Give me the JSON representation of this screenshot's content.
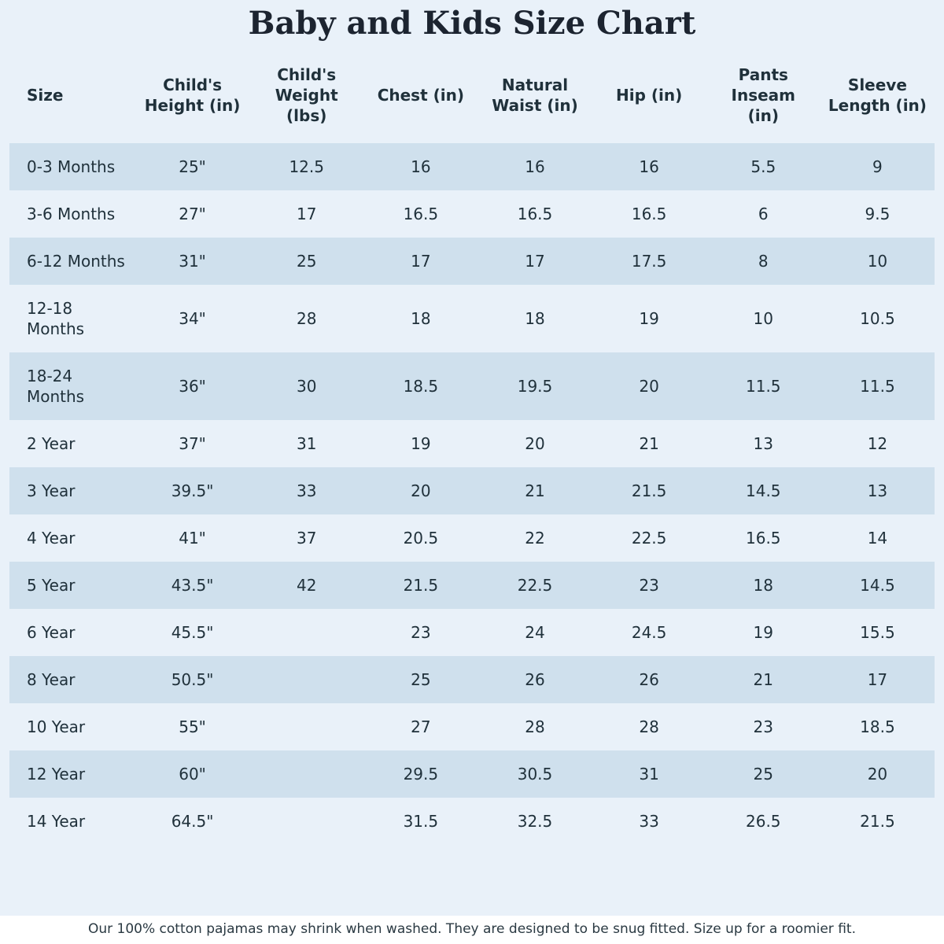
{
  "page": {
    "title": "Baby and Kids Size Chart",
    "footer_note": "Our 100% cotton pajamas may shrink when washed. They are designed to be snug fitted. Size up for a roomier fit."
  },
  "colors": {
    "page_background": "#e9f1f9",
    "row_stripe": "#cfe0ed",
    "text_color": "#20313b",
    "footer_background": "#ffffff"
  },
  "chart_data": {
    "type": "table",
    "title": "Baby and Kids Size Chart",
    "columns": [
      "Size",
      "Child's Height (in)",
      "Child's Weight (lbs)",
      "Chest (in)",
      "Natural Waist (in)",
      "Hip (in)",
      "Pants Inseam (in)",
      "Sleeve Length (in)"
    ],
    "rows": [
      [
        "0-3 Months",
        "25\"",
        "12.5",
        "16",
        "16",
        "16",
        "5.5",
        "9"
      ],
      [
        "3-6 Months",
        "27\"",
        "17",
        "16.5",
        "16.5",
        "16.5",
        "6",
        "9.5"
      ],
      [
        "6-12 Months",
        "31\"",
        "25",
        "17",
        "17",
        "17.5",
        "8",
        "10"
      ],
      [
        "12-18 Months",
        "34\"",
        "28",
        "18",
        "18",
        "19",
        "10",
        "10.5"
      ],
      [
        "18-24 Months",
        "36\"",
        "30",
        "18.5",
        "19.5",
        "20",
        "11.5",
        "11.5"
      ],
      [
        "2 Year",
        "37\"",
        "31",
        "19",
        "20",
        "21",
        "13",
        "12"
      ],
      [
        "3 Year",
        "39.5\"",
        "33",
        "20",
        "21",
        "21.5",
        "14.5",
        "13"
      ],
      [
        "4 Year",
        "41\"",
        "37",
        "20.5",
        "22",
        "22.5",
        "16.5",
        "14"
      ],
      [
        "5 Year",
        "43.5\"",
        "42",
        "21.5",
        "22.5",
        "23",
        "18",
        "14.5"
      ],
      [
        "6 Year",
        "45.5\"",
        "",
        "23",
        "24",
        "24.5",
        "19",
        "15.5"
      ],
      [
        "8 Year",
        "50.5\"",
        "",
        "25",
        "26",
        "26",
        "21",
        "17"
      ],
      [
        "10 Year",
        "55\"",
        "",
        "27",
        "28",
        "28",
        "23",
        "18.5"
      ],
      [
        "12 Year",
        "60\"",
        "",
        "29.5",
        "30.5",
        "31",
        "25",
        "20"
      ],
      [
        "14 Year",
        "64.5\"",
        "",
        "31.5",
        "32.5",
        "33",
        "26.5",
        "21.5"
      ]
    ],
    "notes": "Rows for 6 Year and up have no Child's Weight value. Odd rows are shaded with the stripe color.",
    "legend_position": "none",
    "grid": false
  }
}
